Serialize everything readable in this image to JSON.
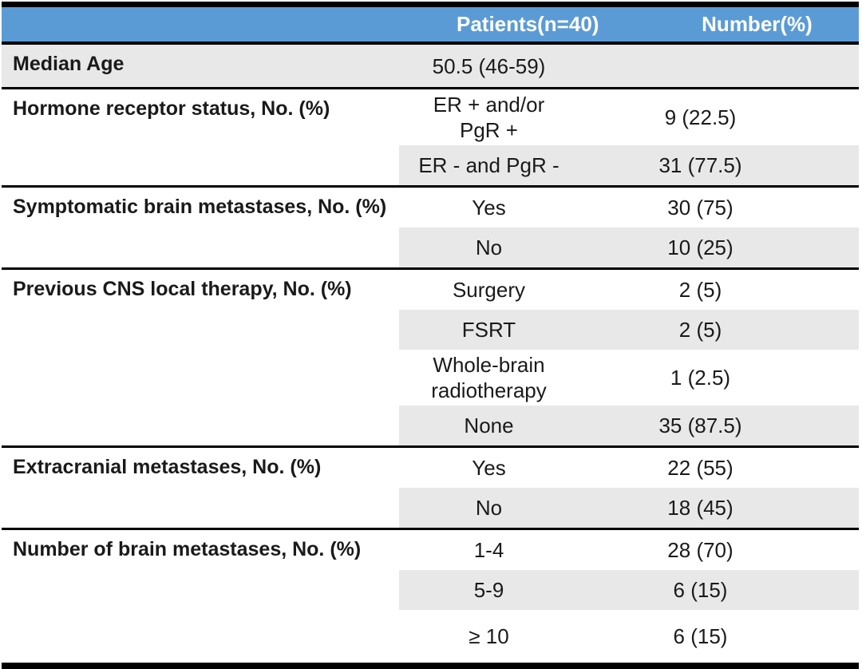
{
  "colors": {
    "header_bg": "#5B9BD5",
    "header_text": "#FFFFFF",
    "stripe": "#E9E8E8",
    "rule": "#000000",
    "text": "#1A1A1A"
  },
  "table": {
    "columns": [
      "",
      "Patients(n=40)",
      "Number(%)"
    ],
    "sections": [
      {
        "label": "Median Age",
        "full_stripe": true,
        "rows": [
          {
            "patients": "50.5 (46-59)",
            "number": ""
          }
        ]
      },
      {
        "label": "Hormone receptor status, No. (%)",
        "rows": [
          {
            "patients": "ER + and/or\nPgR +",
            "number": "9 (22.5)"
          },
          {
            "patients": "ER - and PgR -",
            "number": "31 (77.5)"
          }
        ]
      },
      {
        "label": "Symptomatic brain metastases, No. (%)",
        "rows": [
          {
            "patients": "Yes",
            "number": "30 (75)"
          },
          {
            "patients": "No",
            "number": "10 (25)"
          }
        ]
      },
      {
        "label": "Previous CNS local therapy, No. (%)",
        "rows": [
          {
            "patients": "Surgery",
            "number": "2 (5)"
          },
          {
            "patients": "FSRT",
            "number": "2 (5)"
          },
          {
            "patients": "Whole-brain\nradiotherapy",
            "number": "1 (2.5)"
          },
          {
            "patients": "None",
            "number": "35 (87.5)"
          }
        ]
      },
      {
        "label": "Extracranial metastases, No. (%)",
        "rows": [
          {
            "patients": "Yes",
            "number": "22 (55)"
          },
          {
            "patients": "No",
            "number": "18 (45)"
          }
        ]
      },
      {
        "label": "Number of brain metastases, No. (%)",
        "rows": [
          {
            "patients": "1-4",
            "number": "28 (70)"
          },
          {
            "patients": "5-9",
            "number": "6 (15)"
          },
          {
            "patients": "≥ 10",
            "number": "6 (15)"
          }
        ]
      }
    ]
  }
}
